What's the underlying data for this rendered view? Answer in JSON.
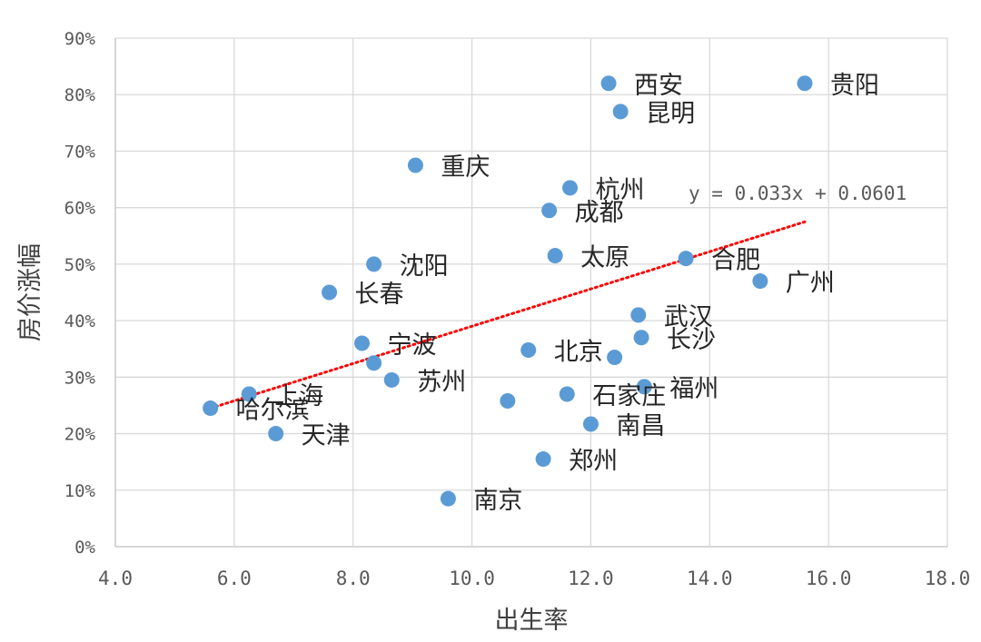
{
  "chart_data": {
    "type": "scatter",
    "xlabel": "出生率",
    "ylabel": "房价涨幅",
    "xlim": [
      4.0,
      18.0
    ],
    "ylim": [
      0,
      0.9
    ],
    "x_ticks": [
      "4.0",
      "6.0",
      "8.0",
      "10.0",
      "12.0",
      "14.0",
      "16.0",
      "18.0"
    ],
    "y_ticks": [
      "0%",
      "10%",
      "20%",
      "30%",
      "40%",
      "50%",
      "60%",
      "70%",
      "80%",
      "90%"
    ],
    "grid": true,
    "marker_color": "#5B9BD5",
    "trendline": {
      "type": "linear",
      "slope": 0.033,
      "intercept": 0.0601,
      "label": "y = 0.033x + 0.0601",
      "color": "#FF0000",
      "x_range": [
        5.6,
        15.6
      ]
    },
    "points": [
      {
        "name": "西安",
        "x": 12.3,
        "y": 0.82
      },
      {
        "name": "贵阳",
        "x": 15.6,
        "y": 0.82
      },
      {
        "name": "昆明",
        "x": 12.5,
        "y": 0.77
      },
      {
        "name": "重庆",
        "x": 9.05,
        "y": 0.675
      },
      {
        "name": "杭州",
        "x": 11.65,
        "y": 0.635
      },
      {
        "name": "成都",
        "x": 11.3,
        "y": 0.595
      },
      {
        "name": "太原",
        "x": 11.4,
        "y": 0.515
      },
      {
        "name": "合肥",
        "x": 13.6,
        "y": 0.51
      },
      {
        "name": "沈阳",
        "x": 8.35,
        "y": 0.5
      },
      {
        "name": "广州",
        "x": 14.85,
        "y": 0.47
      },
      {
        "name": "长春",
        "x": 7.6,
        "y": 0.45
      },
      {
        "name": "武汉",
        "x": 12.8,
        "y": 0.41
      },
      {
        "name": "宁波",
        "x": 8.15,
        "y": 0.36
      },
      {
        "name": "长沙",
        "x": 12.85,
        "y": 0.37
      },
      {
        "name": "北京",
        "x": 10.95,
        "y": 0.348
      },
      {
        "name": "",
        "x": 12.4,
        "y": 0.335
      },
      {
        "name": "",
        "x": 8.35,
        "y": 0.325
      },
      {
        "name": "苏州",
        "x": 8.65,
        "y": 0.295
      },
      {
        "name": "福州",
        "x": 12.9,
        "y": 0.283
      },
      {
        "name": "上海",
        "x": 6.25,
        "y": 0.27
      },
      {
        "name": "石家庄",
        "x": 11.6,
        "y": 0.27
      },
      {
        "name": "",
        "x": 10.6,
        "y": 0.258
      },
      {
        "name": "哈尔滨",
        "x": 5.6,
        "y": 0.245
      },
      {
        "name": "南昌",
        "x": 12.0,
        "y": 0.217
      },
      {
        "name": "天津",
        "x": 6.7,
        "y": 0.2
      },
      {
        "name": "郑州",
        "x": 11.2,
        "y": 0.155
      },
      {
        "name": "南京",
        "x": 9.6,
        "y": 0.085
      }
    ]
  }
}
